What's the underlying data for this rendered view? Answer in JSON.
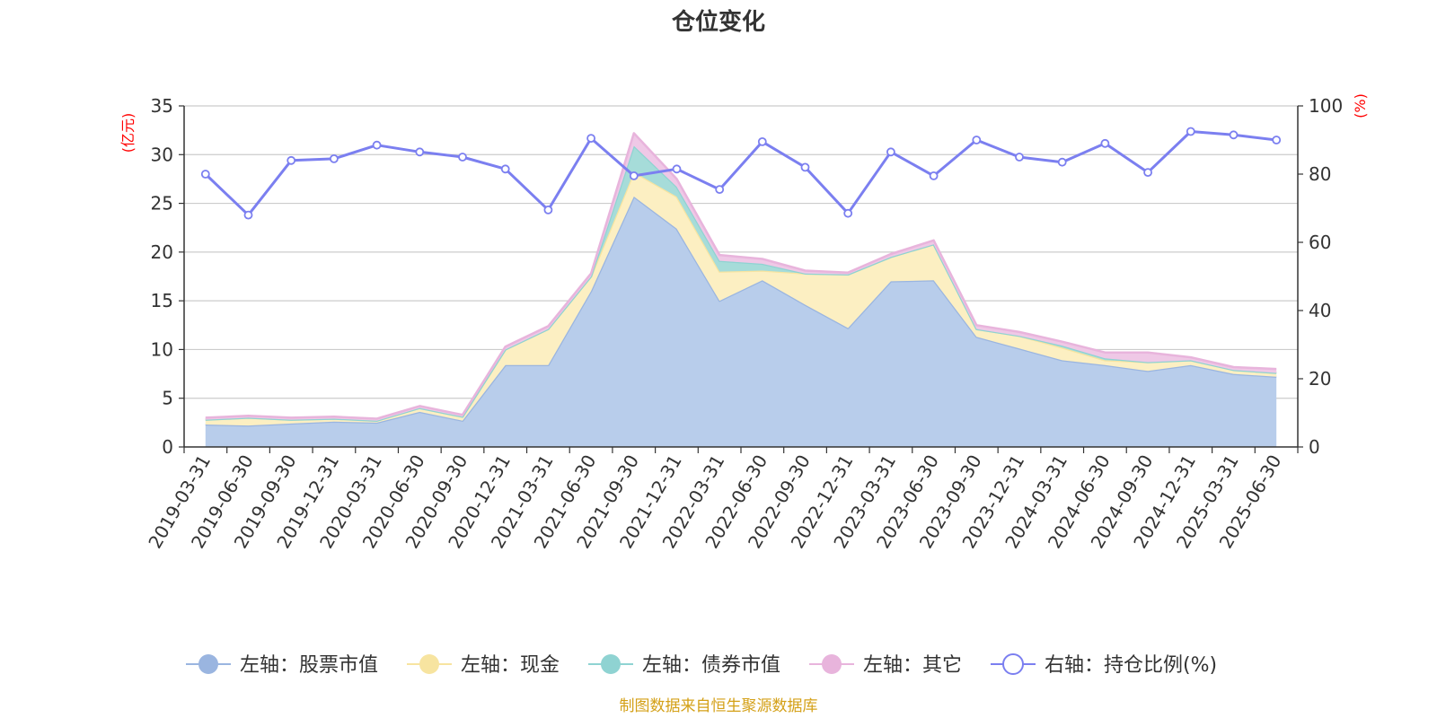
{
  "chart_data": {
    "type": "area",
    "title": "仓位变化",
    "left_axis": {
      "unit": "(亿元)",
      "ticks": [
        0,
        5,
        10,
        15,
        20,
        25,
        30,
        35
      ],
      "range": [
        0,
        35
      ]
    },
    "right_axis": {
      "unit": "(%)",
      "ticks": [
        0,
        20,
        40,
        60,
        80,
        100
      ],
      "range": [
        0,
        100
      ]
    },
    "categories": [
      "2019-03-31",
      "2019-06-30",
      "2019-09-30",
      "2019-12-31",
      "2020-03-31",
      "2020-06-30",
      "2020-09-30",
      "2020-12-31",
      "2021-03-31",
      "2021-06-30",
      "2021-09-30",
      "2021-12-31",
      "2022-03-31",
      "2022-06-30",
      "2022-09-30",
      "2022-12-31",
      "2023-03-31",
      "2023-06-30",
      "2023-09-30",
      "2023-12-31",
      "2024-03-31",
      "2024-06-30",
      "2024-09-30",
      "2024-12-31",
      "2025-03-31",
      "2025-06-30"
    ],
    "series": [
      {
        "name": "左轴：股票市值",
        "axis": "left",
        "stacked": true,
        "color": "#9ab5e0",
        "fill": "#b8cdeb",
        "values": [
          2.3,
          2.2,
          2.4,
          2.6,
          2.5,
          3.6,
          2.7,
          8.4,
          8.4,
          16.0,
          25.7,
          22.4,
          15.0,
          17.1,
          14.6,
          12.2,
          17.0,
          17.1,
          11.3,
          10.1,
          8.9,
          8.4,
          7.8,
          8.4,
          7.5,
          7.2
        ],
        "legend_icon": "filled-circle"
      },
      {
        "name": "左轴：现金",
        "axis": "left",
        "stacked": true,
        "color": "#f7e4a0",
        "fill": "#fcefc2",
        "values": [
          0.5,
          0.8,
          0.4,
          0.3,
          0.2,
          0.4,
          0.4,
          1.6,
          3.7,
          1.5,
          2.5,
          3.3,
          3.0,
          1.0,
          3.2,
          5.5,
          2.5,
          3.7,
          0.8,
          1.3,
          1.3,
          0.5,
          0.9,
          0.5,
          0.4,
          0.4
        ],
        "legend_icon": "filled-circle"
      },
      {
        "name": "左轴：债券市值",
        "axis": "left",
        "stacked": true,
        "color": "#8fd3d2",
        "fill": "#a6dcd9",
        "values": [
          0,
          0,
          0,
          0,
          0,
          0,
          0,
          0,
          0,
          0,
          2.7,
          1.0,
          1.1,
          0.7,
          0,
          0,
          0,
          0,
          0,
          0,
          0.2,
          0.2,
          0,
          0,
          0,
          0
        ],
        "legend_icon": "filled-circle"
      },
      {
        "name": "左轴：其它",
        "axis": "left",
        "stacked": true,
        "color": "#e8b4dc",
        "fill": "#efc8e6",
        "values": [
          0.2,
          0.2,
          0.2,
          0.2,
          0.2,
          0.2,
          0.2,
          0.3,
          0.3,
          0.3,
          1.3,
          0.8,
          0.6,
          0.5,
          0.3,
          0.2,
          0.3,
          0.4,
          0.4,
          0.4,
          0.4,
          0.6,
          1.0,
          0.3,
          0.3,
          0.4
        ],
        "legend_icon": "filled-circle"
      },
      {
        "name": "右轴：持仓比例(%)",
        "axis": "right",
        "type": "line",
        "color": "#7b7ff0",
        "values": [
          80,
          68,
          84,
          84.5,
          88.5,
          86.5,
          85,
          81.5,
          69.5,
          90.5,
          79.5,
          81.5,
          75.5,
          89.5,
          82,
          68.5,
          86.5,
          79.5,
          90,
          85,
          83.5,
          89,
          80.5,
          92.5,
          91.5,
          90
        ],
        "legend_icon": "hollow-circle"
      }
    ],
    "grid": true,
    "legend_position": "bottom",
    "source_note": "制图数据来自恒生聚源数据库",
    "colors": {
      "axis_unit": "#ff0000",
      "source_note": "#d4a017",
      "grid": "#cccccc",
      "axis": "#333333"
    }
  }
}
